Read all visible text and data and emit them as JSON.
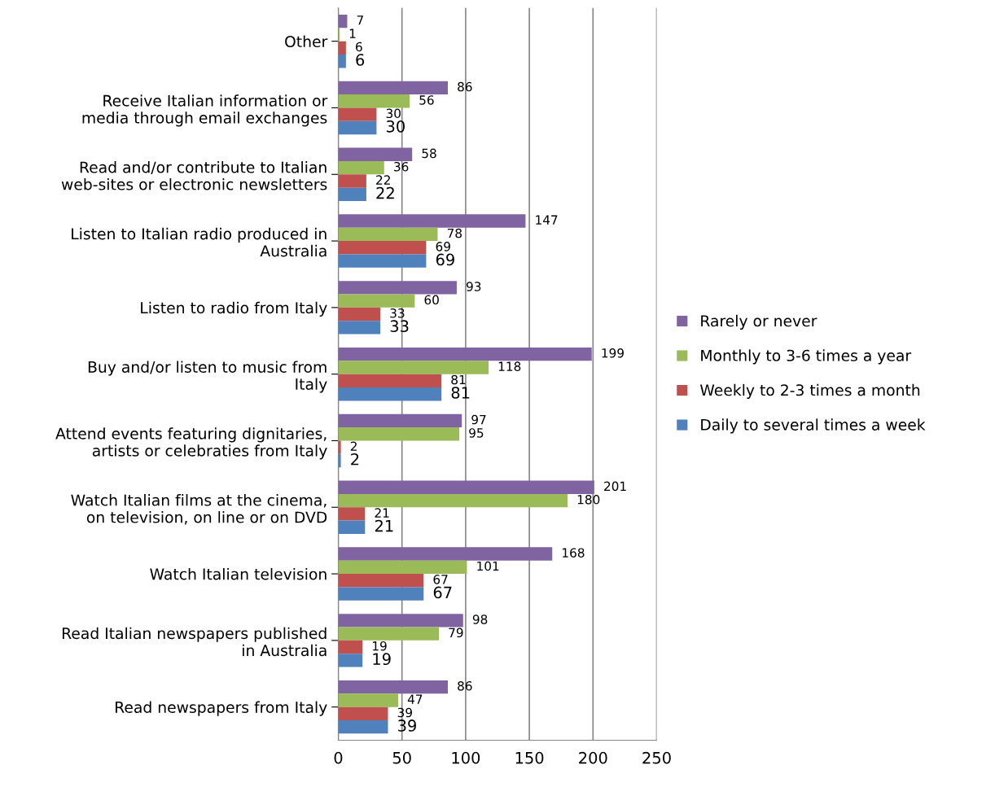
{
  "chart_data": {
    "type": "bar",
    "orientation": "horizontal",
    "categories": [
      "Other",
      "Receive Italian information or\nmedia through email exchanges",
      "Read and/or contribute to Italian\nweb-sites or electronic newsletters",
      "Listen to Italian radio produced in\nAustralia",
      "Listen to radio from Italy",
      "Buy and/or listen to music from\nItaly",
      "Attend events featuring dignitaries,\nartists or celebraties from Italy",
      "Watch Italian films at the cinema,\non television, on line or on DVD",
      "Watch Italian television",
      "Read Italian newspapers published\nin Australia",
      "Read newspapers from Italy"
    ],
    "series": [
      {
        "name": "Rarely or never",
        "color": "#8064a2",
        "values": [
          7,
          86,
          58,
          147,
          93,
          199,
          97,
          201,
          168,
          98,
          86
        ]
      },
      {
        "name": "Monthly to 3-6 times a year",
        "color": "#9bbb59",
        "values": [
          1,
          56,
          36,
          78,
          60,
          118,
          95,
          180,
          101,
          79,
          47
        ]
      },
      {
        "name": "Weekly to 2-3 times a month",
        "color": "#c0504d",
        "values": [
          6,
          30,
          22,
          69,
          33,
          81,
          2,
          21,
          67,
          19,
          39
        ]
      },
      {
        "name": "Daily to several times a week",
        "color": "#4f81bd",
        "values": [
          6,
          30,
          22,
          69,
          33,
          81,
          2,
          21,
          67,
          19,
          39
        ]
      }
    ],
    "xlim": [
      0,
      250
    ],
    "xticks": [
      0,
      50,
      100,
      150,
      200,
      250
    ],
    "grid": "x",
    "legend": "right",
    "data_labels": true
  }
}
